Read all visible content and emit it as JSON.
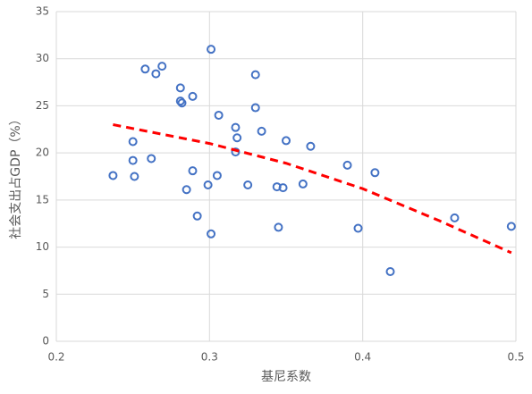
{
  "chart_data": {
    "type": "scatter",
    "x_label": "基尼系数",
    "y_label": "社会支出占GDP（%）",
    "xlim": [
      0.2,
      0.5
    ],
    "xticks": [
      0.2,
      0.3,
      0.4,
      0.5
    ],
    "ylim": [
      0,
      35
    ],
    "yticks": [
      0,
      5,
      10,
      15,
      20,
      25,
      30,
      35
    ],
    "grid": true,
    "series": [
      {
        "color": "#4472c4",
        "marker": "circle",
        "x": [
          0.237,
          0.25,
          0.25,
          0.251,
          0.258,
          0.262,
          0.265,
          0.269,
          0.281,
          0.281,
          0.282,
          0.285,
          0.289,
          0.289,
          0.292,
          0.299,
          0.301,
          0.301,
          0.305,
          0.306,
          0.317,
          0.318,
          0.317,
          0.325,
          0.33,
          0.33,
          0.334,
          0.344,
          0.345,
          0.348,
          0.35,
          0.361,
          0.366,
          0.39,
          0.397,
          0.408,
          0.418,
          0.46,
          0.497
        ],
        "values": [
          17.6,
          21.2,
          19.2,
          17.5,
          28.9,
          19.4,
          28.4,
          29.2,
          26.9,
          25.5,
          25.3,
          16.1,
          26.0,
          18.1,
          13.3,
          16.6,
          31.0,
          11.4,
          17.6,
          24.0,
          22.7,
          21.6,
          20.1,
          16.6,
          28.3,
          24.8,
          22.3,
          16.4,
          12.1,
          16.3,
          21.3,
          16.7,
          20.7,
          18.7,
          12.0,
          17.9,
          7.4,
          13.1,
          12.2
        ]
      },
      {
        "color": "#ff0000",
        "marker": "dashed-line",
        "x": [
          0.237,
          0.3,
          0.35,
          0.4,
          0.45,
          0.497
        ],
        "values": [
          23.0,
          21.0,
          18.9,
          16.2,
          12.8,
          9.4
        ]
      }
    ]
  }
}
